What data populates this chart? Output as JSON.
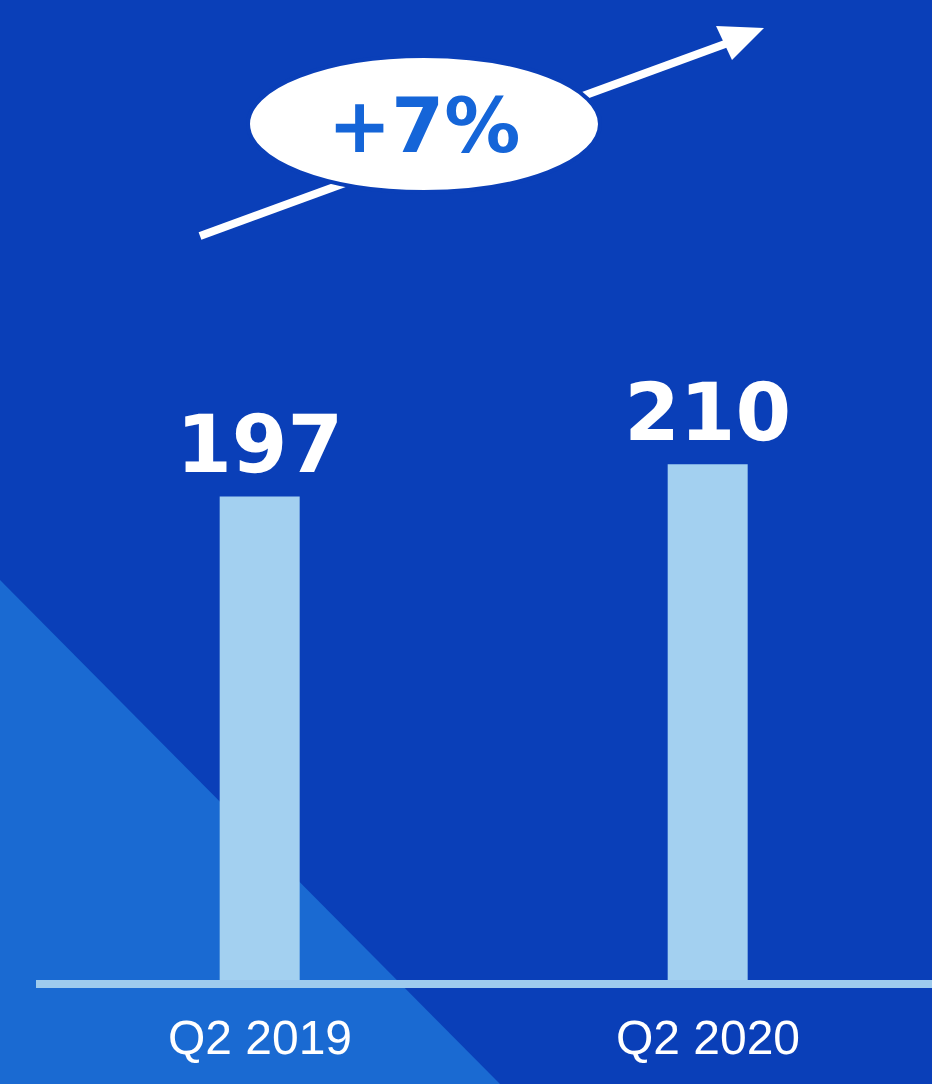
{
  "chart_data": {
    "type": "bar",
    "categories": [
      "Q2 2019",
      "Q2 2020"
    ],
    "values": [
      197,
      210
    ],
    "color": "#a3d0f0",
    "data_labels": true,
    "annotations": [
      "+7%"
    ]
  }
}
